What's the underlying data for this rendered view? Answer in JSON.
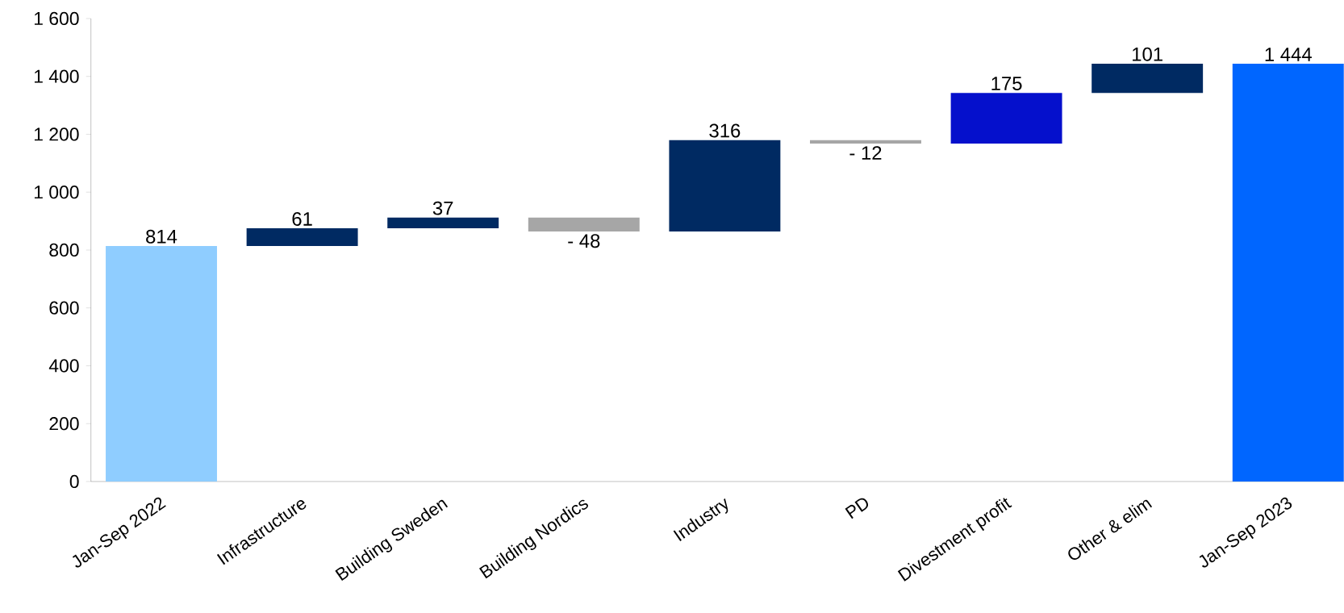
{
  "chart_data": {
    "type": "bar",
    "categories": [
      "Jan-Sep 2022",
      "Infrastructure",
      "Building Sweden",
      "Building Nordics",
      "Industry",
      "PD",
      "Divestment profit",
      "Other & elim",
      "Jan-Sep 2023"
    ],
    "values": [
      814,
      61,
      37,
      -48,
      316,
      -12,
      175,
      101,
      1444
    ],
    "base": [
      0,
      814,
      875,
      912,
      864,
      1180,
      1168,
      1343,
      0
    ],
    "colors": [
      "#8fcdff",
      "#002a62",
      "#002a62",
      "#a6a6a6",
      "#002a62",
      "#a6a6a6",
      "#0510cc",
      "#002a62",
      "#0066ff"
    ],
    "value_labels": [
      "814",
      "61",
      "37",
      "- 48",
      "316",
      "- 12",
      "175",
      "101",
      "1 444"
    ],
    "ylim": [
      0,
      1600
    ],
    "yticks": [
      0,
      200,
      400,
      600,
      800,
      {
        "value": 1000,
        "label": "1 000"
      },
      {
        "value": 1200,
        "label": "1 200"
      },
      {
        "value": 1400,
        "label": "1 400"
      },
      {
        "value": 1600,
        "label": "1 600"
      }
    ],
    "grid": false
  }
}
